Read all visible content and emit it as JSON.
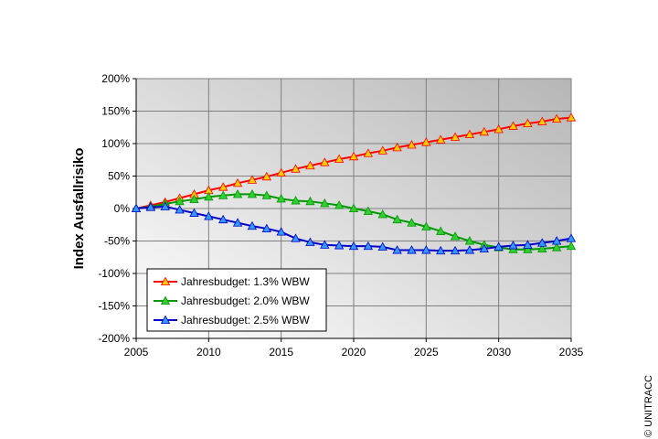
{
  "chart_data": {
    "type": "line",
    "title": "",
    "xlabel": "",
    "ylabel": "Index Ausfallrisiko",
    "xlim": [
      2005,
      2035
    ],
    "ylim": [
      -200,
      200
    ],
    "x_ticks": [
      2005,
      2010,
      2015,
      2020,
      2025,
      2030,
      2035
    ],
    "y_ticks": [
      -200,
      -150,
      -100,
      -50,
      0,
      50,
      100,
      150,
      200
    ],
    "y_tick_labels": [
      "-200%",
      "-150%",
      "-100%",
      "-50%",
      "0%",
      "50%",
      "100%",
      "150%",
      "200%"
    ],
    "grid": true,
    "legend_position": "bottom-left",
    "x": [
      2005,
      2006,
      2007,
      2008,
      2009,
      2010,
      2011,
      2012,
      2013,
      2014,
      2015,
      2016,
      2017,
      2018,
      2019,
      2020,
      2021,
      2022,
      2023,
      2024,
      2025,
      2026,
      2027,
      2028,
      2029,
      2030,
      2031,
      2032,
      2033,
      2034,
      2035
    ],
    "series": [
      {
        "name": "Jahresbudget: 1.3% WBW",
        "line_color": "#ff0000",
        "marker_color": "#ffcc00",
        "values": [
          0,
          5,
          10,
          16,
          22,
          28,
          33,
          39,
          44,
          49,
          55,
          61,
          66,
          71,
          76,
          80,
          85,
          89,
          94,
          98,
          102,
          106,
          110,
          114,
          118,
          122,
          127,
          131,
          134,
          138,
          140
        ]
      },
      {
        "name": "Jahresbudget: 2.0% WBW",
        "line_color": "#009900",
        "marker_color": "#33cc33",
        "values": [
          0,
          3,
          7,
          11,
          14,
          18,
          20,
          22,
          22,
          20,
          15,
          12,
          11,
          8,
          5,
          0,
          -4,
          -9,
          -17,
          -22,
          -28,
          -35,
          -43,
          -50,
          -56,
          -60,
          -63,
          -63,
          -62,
          -60,
          -58
        ]
      },
      {
        "name": "Jahresbudget: 2.5% WBW",
        "line_color": "#0000cc",
        "marker_color": "#3399ff",
        "values": [
          0,
          2,
          3,
          -2,
          -7,
          -12,
          -17,
          -22,
          -27,
          -31,
          -36,
          -46,
          -52,
          -56,
          -57,
          -58,
          -58,
          -59,
          -64,
          -64,
          -64,
          -65,
          -65,
          -64,
          -62,
          -59,
          -57,
          -56,
          -53,
          -50,
          -46
        ]
      }
    ]
  },
  "copyright": "© UNITRACC"
}
